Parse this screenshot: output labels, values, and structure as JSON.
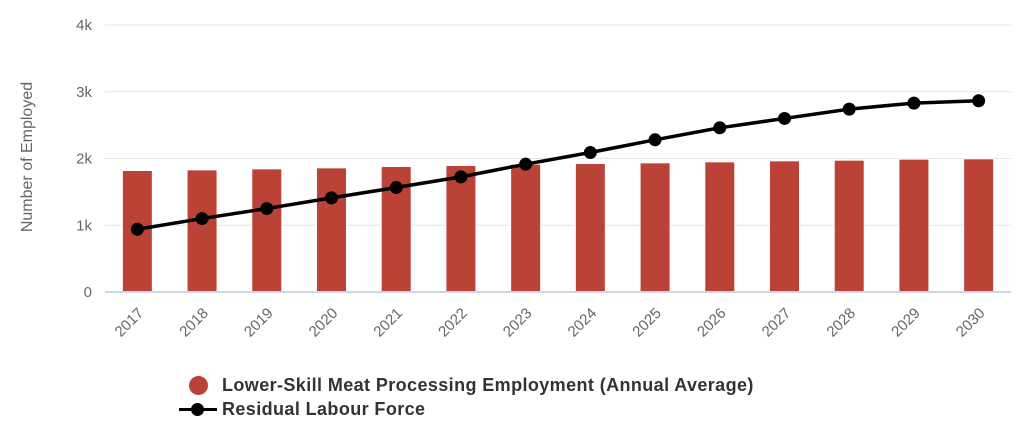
{
  "chart_data": {
    "type": "bar",
    "subtype": "bar-line-combo",
    "categories": [
      "2017",
      "2018",
      "2019",
      "2020",
      "2021",
      "2022",
      "2023",
      "2024",
      "2025",
      "2026",
      "2027",
      "2028",
      "2029",
      "2030"
    ],
    "series": [
      {
        "name": "Lower-Skill Meat Processing Employment (Annual Average)",
        "type": "bar",
        "color": "#BA4237",
        "values": [
          1820,
          1830,
          1845,
          1860,
          1880,
          1895,
          1915,
          1925,
          1935,
          1950,
          1965,
          1975,
          1990,
          1995
        ]
      },
      {
        "name": "Residual Labour Force",
        "type": "line",
        "color": "#000000",
        "values": [
          940,
          1100,
          1250,
          1410,
          1565,
          1725,
          1915,
          2090,
          2280,
          2460,
          2600,
          2740,
          2830,
          2865
        ]
      }
    ],
    "title": "",
    "xlabel": "",
    "ylabel": "Number of Employed",
    "ylim": [
      0,
      4000
    ],
    "yticks": [
      0,
      1000,
      2000,
      3000,
      4000
    ],
    "ytick_labels": [
      "0",
      "1k",
      "2k",
      "3k",
      "4k"
    ],
    "grid": true,
    "legend_position": "bottom-left",
    "colors": {
      "grid": "#E6E6E6",
      "axis_line": "#CCD6EB",
      "tick_label": "#666666",
      "axis_title": "#666666",
      "legend_text": "#333333",
      "background": "#FFFFFF"
    }
  }
}
